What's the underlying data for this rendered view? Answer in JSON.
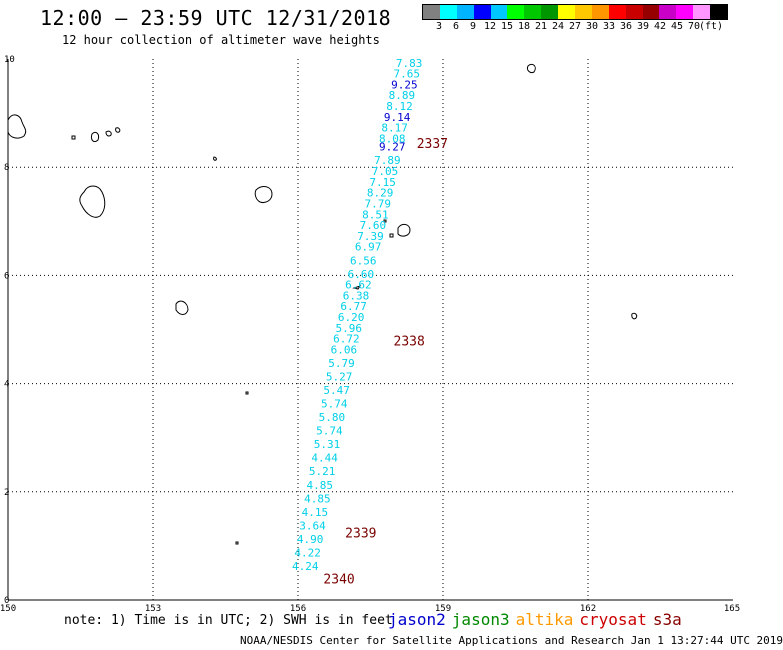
{
  "title": "12:00 – 23:59 UTC 12/31/2018",
  "subtitle": "12 hour collection of altimeter wave heights",
  "colorbar": {
    "colors": [
      "#808080",
      "#00ffff",
      "#00b4ff",
      "#0000ff",
      "#00c8ff",
      "#00ff00",
      "#00c800",
      "#009600",
      "#ffff00",
      "#ffc800",
      "#ff9600",
      "#ff0000",
      "#c80000",
      "#960000",
      "#c800c8",
      "#ff00ff",
      "#ff96ff",
      "#000000"
    ],
    "labels": [
      "3",
      "6",
      "9",
      "12",
      "15",
      "18",
      "21",
      "24",
      "27",
      "30",
      "33",
      "36",
      "39",
      "42",
      "45",
      "70",
      "(ft)"
    ]
  },
  "axes": {
    "x_ticks": [
      "150",
      "153",
      "156",
      "159",
      "162",
      "165"
    ],
    "y_ticks": [
      "0",
      "2",
      "4",
      "6",
      "8",
      "10"
    ],
    "xlim": [
      150,
      165
    ],
    "ylim": [
      0,
      10
    ]
  },
  "track": {
    "color_light": "#00d0e8",
    "color_blue": "#0000d0",
    "readings": [
      {
        "lon": 158.3,
        "lat": 9.93,
        "v": "7.83"
      },
      {
        "lon": 158.25,
        "lat": 9.73,
        "v": "7.65"
      },
      {
        "lon": 158.2,
        "lat": 9.53,
        "v": "9.25",
        "blue": true
      },
      {
        "lon": 158.15,
        "lat": 9.33,
        "v": "8.89"
      },
      {
        "lon": 158.1,
        "lat": 9.13,
        "v": "8.12"
      },
      {
        "lon": 158.05,
        "lat": 8.93,
        "v": "9.14",
        "blue": true
      },
      {
        "lon": 158.0,
        "lat": 8.73,
        "v": "8.17"
      },
      {
        "lon": 157.95,
        "lat": 8.53,
        "v": "8.08"
      },
      {
        "lon": 157.95,
        "lat": 8.38,
        "v": "9.27",
        "blue": true
      },
      {
        "lon": 157.85,
        "lat": 8.13,
        "v": "7.89"
      },
      {
        "lon": 157.8,
        "lat": 7.93,
        "v": "7.05"
      },
      {
        "lon": 157.75,
        "lat": 7.73,
        "v": "7.15"
      },
      {
        "lon": 157.7,
        "lat": 7.53,
        "v": "8.29"
      },
      {
        "lon": 157.65,
        "lat": 7.33,
        "v": "7.79"
      },
      {
        "lon": 157.6,
        "lat": 7.13,
        "v": "8.51"
      },
      {
        "lon": 157.55,
        "lat": 6.93,
        "v": "7.60"
      },
      {
        "lon": 157.5,
        "lat": 6.73,
        "v": "7.39"
      },
      {
        "lon": 157.45,
        "lat": 6.53,
        "v": "6.97"
      },
      {
        "lon": 157.35,
        "lat": 6.28,
        "v": "6.56"
      },
      {
        "lon": 157.3,
        "lat": 6.03,
        "v": "6.60"
      },
      {
        "lon": 157.25,
        "lat": 5.83,
        "v": "6.62"
      },
      {
        "lon": 157.2,
        "lat": 5.63,
        "v": "6.38"
      },
      {
        "lon": 157.15,
        "lat": 5.43,
        "v": "6.77"
      },
      {
        "lon": 157.1,
        "lat": 5.23,
        "v": "6.20"
      },
      {
        "lon": 157.05,
        "lat": 5.03,
        "v": "5.96"
      },
      {
        "lon": 157.0,
        "lat": 4.83,
        "v": "6.72"
      },
      {
        "lon": 156.95,
        "lat": 4.63,
        "v": "6.06"
      },
      {
        "lon": 156.9,
        "lat": 4.38,
        "v": "5.79"
      },
      {
        "lon": 156.85,
        "lat": 4.13,
        "v": "5.27"
      },
      {
        "lon": 156.8,
        "lat": 3.88,
        "v": "5.47"
      },
      {
        "lon": 156.75,
        "lat": 3.63,
        "v": "5.74"
      },
      {
        "lon": 156.7,
        "lat": 3.38,
        "v": "5.80"
      },
      {
        "lon": 156.65,
        "lat": 3.13,
        "v": "5.74"
      },
      {
        "lon": 156.6,
        "lat": 2.88,
        "v": "5.31"
      },
      {
        "lon": 156.55,
        "lat": 2.63,
        "v": "4.44"
      },
      {
        "lon": 156.5,
        "lat": 2.38,
        "v": "5.21"
      },
      {
        "lon": 156.45,
        "lat": 2.13,
        "v": "4.85"
      },
      {
        "lon": 156.4,
        "lat": 1.88,
        "v": "4.85"
      },
      {
        "lon": 156.35,
        "lat": 1.63,
        "v": "4.15"
      },
      {
        "lon": 156.3,
        "lat": 1.38,
        "v": "3.64"
      },
      {
        "lon": 156.25,
        "lat": 1.13,
        "v": "4.90"
      },
      {
        "lon": 156.2,
        "lat": 0.88,
        "v": "4.22"
      },
      {
        "lon": 156.15,
        "lat": 0.63,
        "v": "4.24"
      }
    ]
  },
  "pass_labels": [
    {
      "text": "2337",
      "lon": 158.78,
      "lat": 8.43
    },
    {
      "text": "2338",
      "lon": 158.3,
      "lat": 4.78
    },
    {
      "text": "2339",
      "lon": 157.3,
      "lat": 1.23
    },
    {
      "text": "2340",
      "lon": 156.85,
      "lat": 0.38
    }
  ],
  "pass_color": "#7a0000",
  "note": "note: 1) Time is in UTC; 2) SWH is in feet",
  "legend": [
    {
      "name": "jason2",
      "color": "#0000cc"
    },
    {
      "name": "jason3",
      "color": "#008800"
    },
    {
      "name": "altika",
      "color": "#ff9900"
    },
    {
      "name": "cryosat",
      "color": "#cc0000"
    },
    {
      "name": "s3a",
      "color": "#880000"
    }
  ],
  "credit": "NOAA/NESDIS Center for Satellite Applications and Research   Jan  1 13:27:44 UTC 2019"
}
